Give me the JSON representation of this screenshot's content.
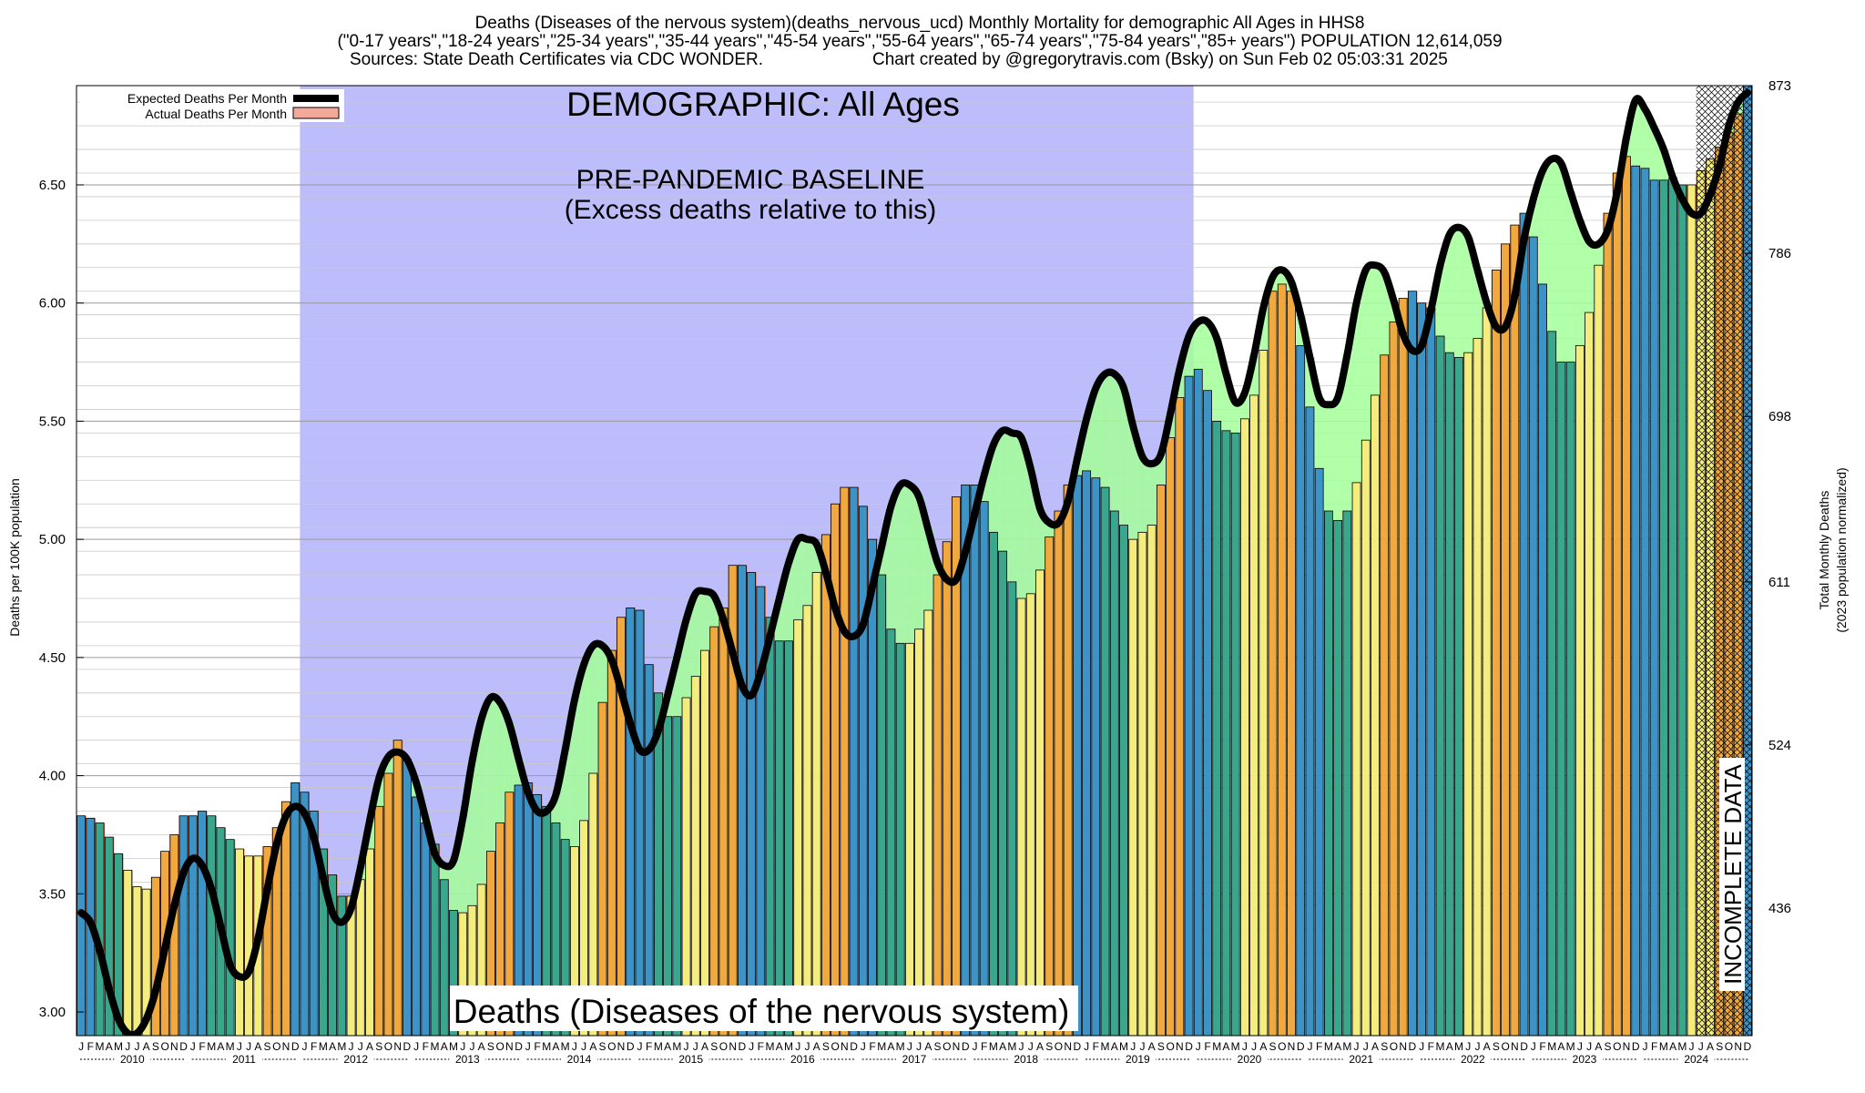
{
  "header": {
    "line1": "Deaths (Diseases of the nervous system)(deaths_nervous_ucd) Monthly Mortality for demographic All Ages in HHS8",
    "line2": "(\"0-17 years\",\"18-24 years\",\"25-34 years\",\"35-44 years\",\"45-54 years\",\"55-64 years\",\"65-74 years\",\"75-84 years\",\"85+ years\") POPULATION 12,614,059",
    "line3_sources": "Sources: State Death Certificates via CDC WONDER.",
    "line3_credit": "Chart created by @gregorytravis.com (Bsky) on Sun Feb 02 05:03:31 2025"
  },
  "annotations": {
    "demographic": "DEMOGRAPHIC: All Ages",
    "baseline_line1": "PRE-PANDEMIC BASELINE",
    "baseline_line2": "(Excess deaths relative to this)",
    "bottom_label": "Deaths (Diseases of the nervous system)",
    "incomplete": "INCOMPLETE DATA"
  },
  "legend": {
    "expected": "Expected Deaths Per Month",
    "actual": "Actual Deaths Per Month"
  },
  "axes": {
    "ylabel_left": "Deaths per 100K population",
    "ylabel_right_1": "Total Monthly Deaths",
    "ylabel_right_2": "(2023 population normalized)"
  },
  "colors": {
    "baseline_shade": "#bdbdfb",
    "excess_fill": "#a5ff9a",
    "deficit_fill": "#ff6a3a",
    "expected_line": "#000000",
    "bar_winter": "#3c93c6",
    "bar_spring": "#3aa78d",
    "bar_summer": "#f4ec7c",
    "bar_fall": "#f0a93e"
  },
  "chart_data": {
    "type": "bar",
    "x_unit": "month",
    "x_start": "2010-01",
    "x_end": "2024-12",
    "year_labels": [
      "2010",
      "2011",
      "2012",
      "2013",
      "2014",
      "2015",
      "2016",
      "2017",
      "2018",
      "2019",
      "2020",
      "2021",
      "2022",
      "2023",
      "2024"
    ],
    "month_letters": [
      "J",
      "F",
      "M",
      "A",
      "M",
      "J",
      "J",
      "A",
      "S",
      "O",
      "N",
      "D"
    ],
    "ylim": [
      2.9,
      6.92
    ],
    "yticks": [
      3.0,
      3.5,
      4.0,
      4.5,
      5.0,
      5.5,
      6.0,
      6.5
    ],
    "yticks_right": [
      {
        "y": 3.44,
        "label": "436"
      },
      {
        "y": 4.13,
        "label": "524"
      },
      {
        "y": 4.82,
        "label": "611"
      },
      {
        "y": 5.52,
        "label": "698"
      },
      {
        "y": 6.21,
        "label": "786"
      },
      {
        "y": 6.92,
        "label": "873"
      }
    ],
    "baseline_period": [
      "2012-01",
      "2019-12"
    ],
    "incomplete_from": "2024-07",
    "series": [
      {
        "name": "Actual Deaths Per Month",
        "values": [
          3.83,
          3.82,
          3.8,
          3.74,
          3.67,
          3.6,
          3.53,
          3.52,
          3.57,
          3.68,
          3.75,
          3.83,
          3.83,
          3.85,
          3.83,
          3.78,
          3.73,
          3.69,
          3.66,
          3.66,
          3.7,
          3.78,
          3.89,
          3.97,
          3.93,
          3.85,
          3.69,
          3.58,
          3.49,
          3.49,
          3.56,
          3.69,
          3.87,
          4.01,
          4.15,
          4.07,
          3.91,
          3.8,
          3.71,
          3.56,
          3.43,
          3.42,
          3.45,
          3.54,
          3.68,
          3.8,
          3.93,
          3.96,
          3.97,
          3.92,
          3.87,
          3.8,
          3.73,
          3.7,
          3.81,
          4.01,
          4.31,
          4.53,
          4.67,
          4.71,
          4.7,
          4.47,
          4.35,
          4.25,
          4.25,
          4.33,
          4.42,
          4.53,
          4.63,
          4.71,
          4.89,
          4.89,
          4.86,
          4.8,
          4.67,
          4.57,
          4.57,
          4.66,
          4.72,
          4.86,
          5.02,
          5.15,
          5.22,
          5.22,
          5.14,
          5.0,
          4.85,
          4.62,
          4.56,
          4.56,
          4.62,
          4.7,
          4.85,
          4.99,
          5.18,
          5.23,
          5.23,
          5.16,
          5.03,
          4.95,
          4.82,
          4.75,
          4.77,
          4.87,
          5.01,
          5.12,
          5.23,
          5.27,
          5.29,
          5.26,
          5.22,
          5.12,
          5.06,
          5.0,
          5.03,
          5.06,
          5.23,
          5.43,
          5.6,
          5.69,
          5.72,
          5.63,
          5.5,
          5.46,
          5.45,
          5.51,
          5.61,
          5.8,
          6.05,
          6.08,
          6.05,
          5.82,
          5.56,
          5.3,
          5.12,
          5.08,
          5.12,
          5.24,
          5.42,
          5.61,
          5.78,
          5.92,
          6.02,
          6.05,
          6.0,
          5.98,
          5.86,
          5.79,
          5.77,
          5.79,
          5.85,
          5.98,
          6.14,
          6.25,
          6.33,
          6.38,
          6.28,
          6.08,
          5.88,
          5.75,
          5.75,
          5.82,
          5.96,
          6.16,
          6.38,
          6.55,
          6.62,
          6.58,
          6.57,
          6.52,
          6.52,
          6.53,
          6.5,
          6.5,
          6.56,
          6.61,
          6.66,
          6.72,
          6.8,
          6.92
        ]
      },
      {
        "name": "Expected Deaths Per Month",
        "values": [
          3.42,
          3.38,
          3.26,
          3.1,
          2.97,
          2.91,
          2.91,
          2.97,
          3.09,
          3.27,
          3.45,
          3.59,
          3.65,
          3.62,
          3.52,
          3.36,
          3.2,
          3.15,
          3.17,
          3.31,
          3.52,
          3.71,
          3.83,
          3.87,
          3.84,
          3.74,
          3.57,
          3.42,
          3.38,
          3.44,
          3.61,
          3.81,
          3.99,
          4.08,
          4.1,
          4.07,
          3.97,
          3.82,
          3.67,
          3.62,
          3.64,
          3.82,
          4.06,
          4.24,
          4.33,
          4.31,
          4.22,
          4.07,
          3.93,
          3.85,
          3.85,
          3.92,
          4.11,
          4.32,
          4.47,
          4.55,
          4.55,
          4.49,
          4.36,
          4.22,
          4.11,
          4.11,
          4.19,
          4.34,
          4.5,
          4.66,
          4.77,
          4.78,
          4.76,
          4.66,
          4.52,
          4.38,
          4.34,
          4.44,
          4.59,
          4.75,
          4.9,
          5.0,
          5.0,
          4.98,
          4.86,
          4.71,
          4.61,
          4.59,
          4.64,
          4.8,
          4.97,
          5.14,
          5.23,
          5.23,
          5.18,
          5.04,
          4.9,
          4.83,
          4.83,
          4.95,
          5.11,
          5.27,
          5.4,
          5.46,
          5.45,
          5.43,
          5.3,
          5.13,
          5.07,
          5.07,
          5.16,
          5.34,
          5.51,
          5.64,
          5.7,
          5.7,
          5.64,
          5.48,
          5.35,
          5.32,
          5.36,
          5.53,
          5.72,
          5.86,
          5.92,
          5.92,
          5.85,
          5.7,
          5.58,
          5.62,
          5.78,
          5.98,
          6.11,
          6.14,
          6.09,
          5.95,
          5.77,
          5.6,
          5.57,
          5.6,
          5.78,
          6.0,
          6.14,
          6.16,
          6.13,
          6.01,
          5.87,
          5.8,
          5.82,
          5.97,
          6.16,
          6.29,
          6.32,
          6.28,
          6.14,
          6.0,
          5.9,
          5.9,
          6.03,
          6.27,
          6.44,
          6.56,
          6.61,
          6.59,
          6.47,
          6.35,
          6.26,
          6.25,
          6.31,
          6.47,
          6.7,
          6.86,
          6.82,
          6.74,
          6.65,
          6.53,
          6.44,
          6.38,
          6.38,
          6.46,
          6.58,
          6.75,
          6.85,
          6.89
        ]
      }
    ]
  }
}
